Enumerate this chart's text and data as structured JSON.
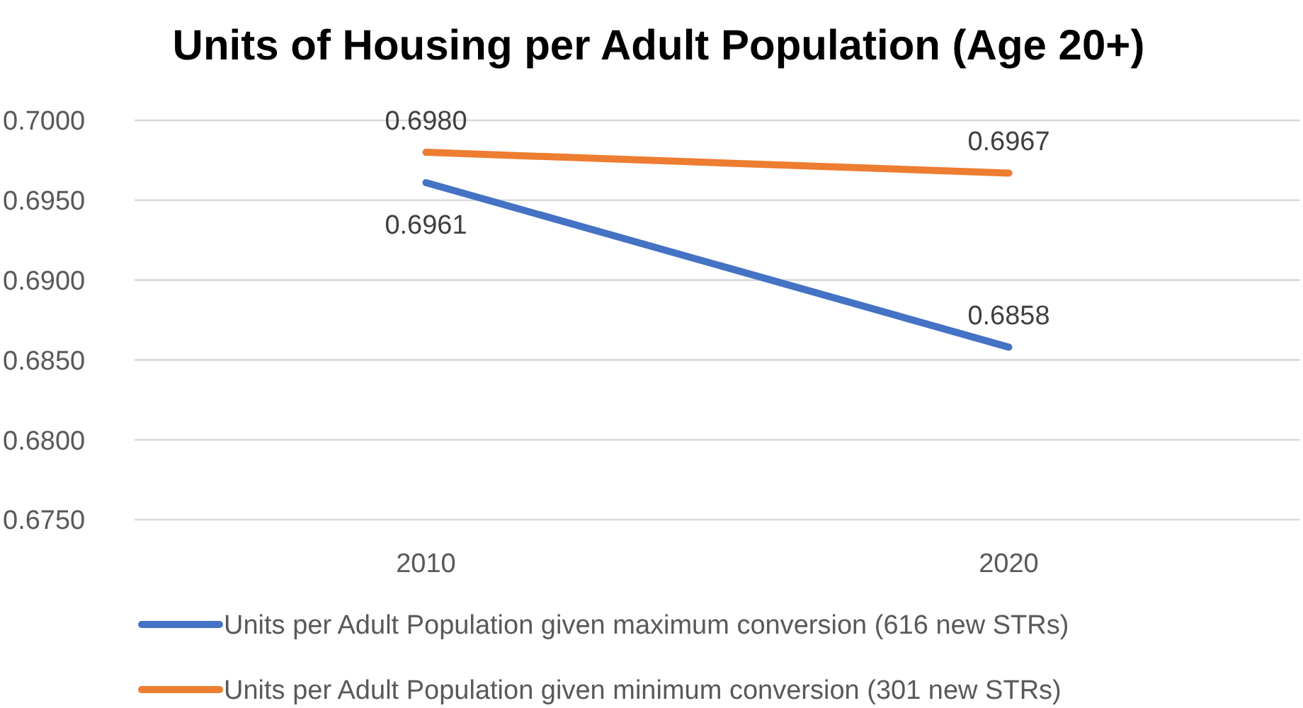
{
  "chart_data": {
    "type": "line",
    "title": "Units of Housing per Adult Population (Age 20+)",
    "categories": [
      "2010",
      "2020"
    ],
    "series": [
      {
        "name": "Units per Adult Population given maximum conversion (616 new STRs)",
        "color": "#4472c4",
        "values": [
          0.6961,
          0.6858
        ],
        "value_labels": [
          "0.6961",
          "0.6858"
        ]
      },
      {
        "name": "Units per Adult Population given minimum conversion (301 new STRs)",
        "color": "#ed7d31",
        "values": [
          0.698,
          0.6967
        ],
        "value_labels": [
          "0.6980",
          "0.6967"
        ]
      }
    ],
    "ylim": [
      0.675,
      0.7
    ],
    "yticks": [
      {
        "value": 0.675,
        "label": "0.6750"
      },
      {
        "value": 0.68,
        "label": "0.6800"
      },
      {
        "value": 0.685,
        "label": "0.6850"
      },
      {
        "value": 0.69,
        "label": "0.6900"
      },
      {
        "value": 0.695,
        "label": "0.6950"
      },
      {
        "value": 0.7,
        "label": "0.7000"
      }
    ],
    "grid": "y",
    "legend": "bottom",
    "marker": "none",
    "line_style": "solid"
  }
}
